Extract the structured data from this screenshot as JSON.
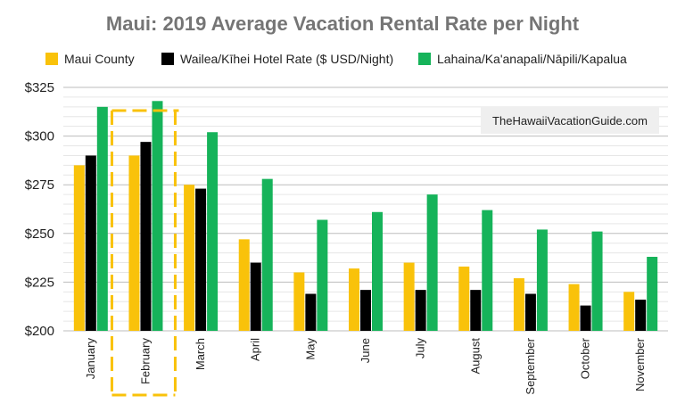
{
  "chart_data": {
    "type": "bar",
    "title": "Maui: 2019 Average Vacation Rental Rate per Night",
    "xlabel": "",
    "ylabel": "",
    "ylim": [
      200,
      325
    ],
    "ytick_values": [
      200,
      225,
      250,
      275,
      300,
      325
    ],
    "ytick_labels": [
      "$200",
      "$225",
      "$250",
      "$275",
      "$300",
      "$325"
    ],
    "minor_gridlines": true,
    "legend_position": "top",
    "categories": [
      "January",
      "February",
      "March",
      "April",
      "May",
      "June",
      "July",
      "August",
      "September",
      "October",
      "November"
    ],
    "series": [
      {
        "name": "Maui County",
        "color": "#F9C20A",
        "values": [
          285,
          290,
          275,
          247,
          230,
          232,
          235,
          233,
          227,
          224,
          220
        ]
      },
      {
        "name": "Wailea/Kīhei Hotel Rate ($ USD/Night)",
        "color": "#000000",
        "values": [
          290,
          297,
          273,
          235,
          219,
          221,
          221,
          221,
          219,
          213,
          216
        ]
      },
      {
        "name": "Lahaina/Ka'anapali/Nāpili/Kapalua",
        "color": "#16B35A",
        "values": [
          315,
          318,
          302,
          278,
          257,
          261,
          270,
          262,
          252,
          251,
          238
        ]
      }
    ],
    "annotations": {
      "watermark": "TheHawaiiVacationGuide.com",
      "highlighted_category": "February",
      "highlight_color": "#F9C20A"
    }
  }
}
